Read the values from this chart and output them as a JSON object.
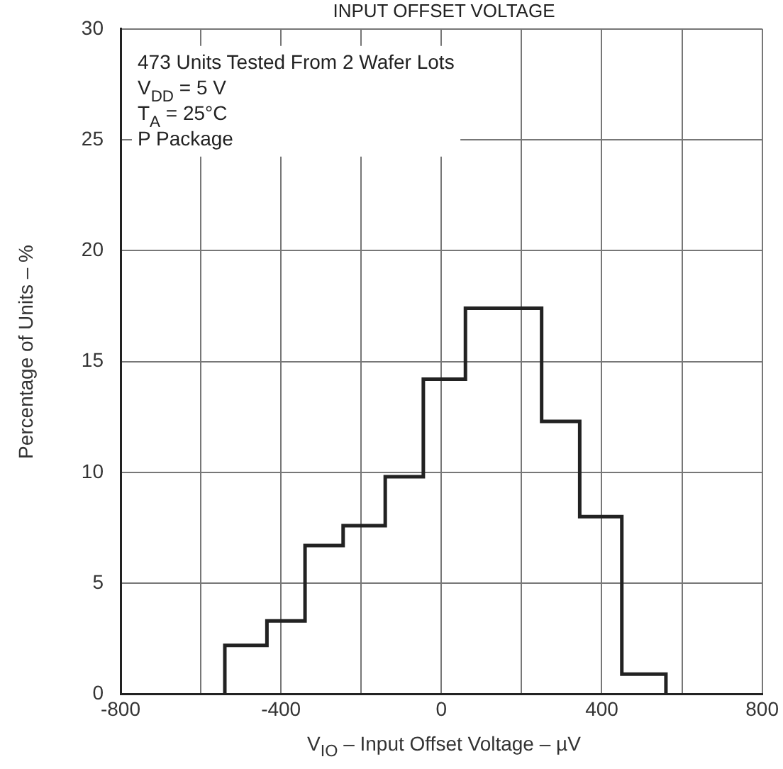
{
  "chart_data": {
    "type": "histogram",
    "title": "INPUT OFFSET VOLTAGE",
    "xlabel": "V$_{IO}$ – Input Offset Voltage – µV",
    "ylabel": "Percentage of Units – %",
    "bins": [
      -540,
      -435,
      -340,
      -245,
      -140,
      -45,
      60,
      155,
      250,
      345,
      450,
      560
    ],
    "values": [
      2.2,
      3.3,
      6.7,
      7.6,
      9.8,
      14.2,
      17.4,
      17.4,
      12.3,
      8.0,
      0.9
    ],
    "color": "#222222",
    "xlim": [
      -800,
      800
    ],
    "xticks": [
      -800,
      {
        "value": -600,
        "label": null
      },
      -400,
      {
        "value": -200,
        "label": null
      },
      0,
      {
        "value": 200,
        "label": null
      },
      400,
      {
        "value": 600,
        "label": null
      },
      800
    ],
    "ylim": [
      0,
      30
    ],
    "yticks": [
      0,
      5,
      10,
      15,
      20,
      25,
      30
    ],
    "grid": true,
    "legend": false,
    "annotations": [
      "473 Units Tested From 2 Wafer Lots",
      "V$_{DD}$ = 5 V",
      "T$_{A}$ = 25°C",
      "P Package"
    ]
  }
}
